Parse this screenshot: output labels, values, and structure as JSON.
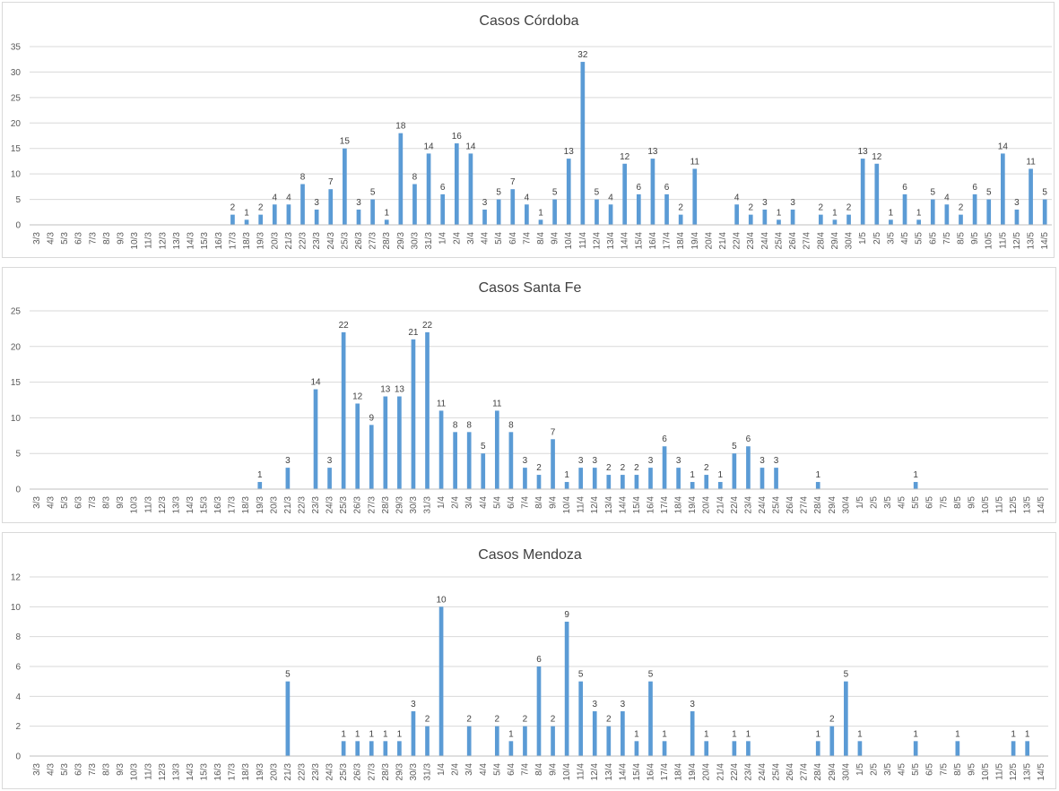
{
  "chart_data": [
    {
      "type": "bar",
      "title": "Casos Córdoba",
      "ylim": [
        0,
        35
      ],
      "yticks": [
        0,
        5,
        10,
        15,
        20,
        25,
        30,
        35
      ],
      "grid": true,
      "color": "#5b9bd5",
      "categories": [
        "3/3",
        "4/3",
        "5/3",
        "6/3",
        "7/3",
        "8/3",
        "9/3",
        "10/3",
        "11/3",
        "12/3",
        "13/3",
        "14/3",
        "15/3",
        "16/3",
        "17/3",
        "18/3",
        "19/3",
        "20/3",
        "21/3",
        "22/3",
        "23/3",
        "24/3",
        "25/3",
        "26/3",
        "27/3",
        "28/3",
        "29/3",
        "30/3",
        "31/3",
        "1/4",
        "2/4",
        "3/4",
        "4/4",
        "5/4",
        "6/4",
        "7/4",
        "8/4",
        "9/4",
        "10/4",
        "11/4",
        "12/4",
        "13/4",
        "14/4",
        "15/4",
        "16/4",
        "17/4",
        "18/4",
        "19/4",
        "20/4",
        "21/4",
        "22/4",
        "23/4",
        "24/4",
        "25/4",
        "26/4",
        "27/4",
        "28/4",
        "29/4",
        "30/4",
        "1/5",
        "2/5",
        "3/5",
        "4/5",
        "5/5",
        "6/5",
        "7/5",
        "8/5",
        "9/5",
        "10/5",
        "11/5",
        "12/5",
        "13/5",
        "14/5"
      ],
      "values": [
        0,
        0,
        0,
        0,
        0,
        0,
        0,
        0,
        0,
        0,
        0,
        0,
        0,
        0,
        2,
        1,
        2,
        4,
        4,
        8,
        3,
        7,
        15,
        3,
        5,
        1,
        18,
        8,
        14,
        6,
        16,
        14,
        3,
        5,
        7,
        4,
        1,
        5,
        13,
        32,
        5,
        4,
        12,
        6,
        13,
        6,
        2,
        11,
        0,
        0,
        4,
        2,
        3,
        1,
        3,
        0,
        2,
        1,
        2,
        13,
        12,
        1,
        6,
        1,
        5,
        4,
        2,
        6,
        5,
        14,
        3,
        11,
        5
      ]
    },
    {
      "type": "bar",
      "title": "Casos Santa Fe",
      "ylim": [
        0,
        25
      ],
      "yticks": [
        0,
        5,
        10,
        15,
        20,
        25
      ],
      "grid": true,
      "color": "#5b9bd5",
      "categories": [
        "3/3",
        "4/3",
        "5/3",
        "6/3",
        "7/3",
        "8/3",
        "9/3",
        "10/3",
        "11/3",
        "12/3",
        "13/3",
        "14/3",
        "15/3",
        "16/3",
        "17/3",
        "18/3",
        "19/3",
        "20/3",
        "21/3",
        "22/3",
        "23/3",
        "24/3",
        "25/3",
        "26/3",
        "27/3",
        "28/3",
        "29/3",
        "30/3",
        "31/3",
        "1/4",
        "2/4",
        "3/4",
        "4/4",
        "5/4",
        "6/4",
        "7/4",
        "8/4",
        "9/4",
        "10/4",
        "11/4",
        "12/4",
        "13/4",
        "14/4",
        "15/4",
        "16/4",
        "17/4",
        "18/4",
        "19/4",
        "20/4",
        "21/4",
        "22/4",
        "23/4",
        "24/4",
        "25/4",
        "26/4",
        "27/4",
        "28/4",
        "29/4",
        "30/4",
        "1/5",
        "2/5",
        "3/5",
        "4/5",
        "5/5",
        "6/5",
        "7/5",
        "8/5",
        "9/5",
        "10/5",
        "11/5",
        "12/5",
        "13/5",
        "14/5"
      ],
      "values": [
        0,
        0,
        0,
        0,
        0,
        0,
        0,
        0,
        0,
        0,
        0,
        0,
        0,
        0,
        0,
        0,
        1,
        0,
        3,
        0,
        14,
        3,
        22,
        12,
        9,
        13,
        13,
        21,
        22,
        11,
        8,
        8,
        5,
        11,
        8,
        3,
        2,
        7,
        1,
        3,
        3,
        2,
        2,
        2,
        3,
        6,
        3,
        1,
        2,
        1,
        5,
        6,
        3,
        3,
        0,
        0,
        1,
        0,
        0,
        0,
        0,
        0,
        0,
        1,
        0,
        0,
        0,
        0,
        0,
        0,
        0,
        0,
        0
      ]
    },
    {
      "type": "bar",
      "title": "Casos Mendoza",
      "ylim": [
        0,
        12
      ],
      "yticks": [
        0,
        2,
        4,
        6,
        8,
        10,
        12
      ],
      "grid": true,
      "color": "#5b9bd5",
      "categories": [
        "3/3",
        "4/3",
        "5/3",
        "6/3",
        "7/3",
        "8/3",
        "9/3",
        "10/3",
        "11/3",
        "12/3",
        "13/3",
        "14/3",
        "15/3",
        "16/3",
        "17/3",
        "18/3",
        "19/3",
        "20/3",
        "21/3",
        "22/3",
        "23/3",
        "24/3",
        "25/3",
        "26/3",
        "27/3",
        "28/3",
        "29/3",
        "30/3",
        "31/3",
        "1/4",
        "2/4",
        "3/4",
        "4/4",
        "5/4",
        "6/4",
        "7/4",
        "8/4",
        "9/4",
        "10/4",
        "11/4",
        "12/4",
        "13/4",
        "14/4",
        "15/4",
        "16/4",
        "17/4",
        "18/4",
        "19/4",
        "20/4",
        "21/4",
        "22/4",
        "23/4",
        "24/4",
        "25/4",
        "26/4",
        "27/4",
        "28/4",
        "29/4",
        "30/4",
        "1/5",
        "2/5",
        "3/5",
        "4/5",
        "5/5",
        "6/5",
        "7/5",
        "8/5",
        "9/5",
        "10/5",
        "11/5",
        "12/5",
        "13/5",
        "14/5"
      ],
      "values": [
        0,
        0,
        0,
        0,
        0,
        0,
        0,
        0,
        0,
        0,
        0,
        0,
        0,
        0,
        0,
        0,
        0,
        0,
        5,
        0,
        0,
        0,
        1,
        1,
        1,
        1,
        1,
        3,
        2,
        10,
        0,
        2,
        0,
        2,
        1,
        2,
        6,
        2,
        9,
        5,
        3,
        2,
        3,
        1,
        5,
        1,
        0,
        3,
        1,
        0,
        1,
        1,
        0,
        0,
        0,
        0,
        1,
        2,
        5,
        1,
        0,
        0,
        0,
        1,
        0,
        0,
        1,
        0,
        0,
        0,
        1,
        1,
        0
      ]
    }
  ]
}
